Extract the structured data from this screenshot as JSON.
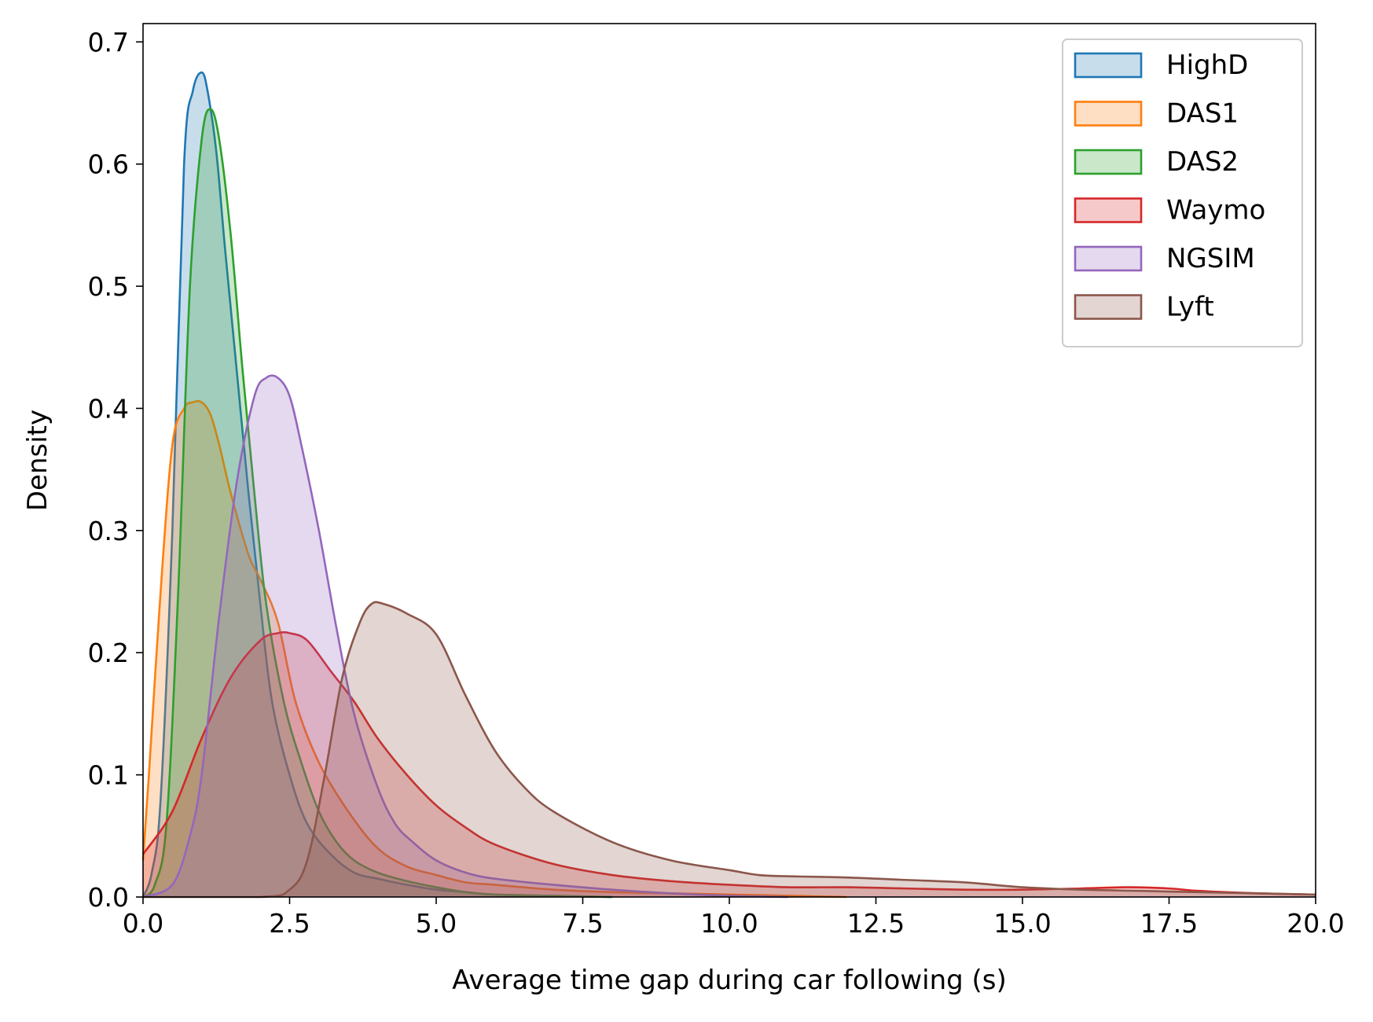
{
  "chart_data": {
    "type": "area",
    "subtype": "kde-density",
    "title": "",
    "xlabel": "Average time gap during car following (s)",
    "ylabel": "Density",
    "xlim": [
      0,
      20
    ],
    "ylim": [
      0,
      0.715
    ],
    "xticks": [
      0,
      2.5,
      5,
      7.5,
      10,
      12.5,
      15,
      17.5,
      20
    ],
    "xtick_labels": [
      "0.0",
      "2.5",
      "5.0",
      "7.5",
      "10.0",
      "12.5",
      "15.0",
      "17.5",
      "20.0"
    ],
    "yticks": [
      0,
      0.1,
      0.2,
      0.3,
      0.4,
      0.5,
      0.6,
      0.7
    ],
    "ytick_labels": [
      "0.0",
      "0.1",
      "0.2",
      "0.3",
      "0.4",
      "0.5",
      "0.6",
      "0.7"
    ],
    "legend_position": "top-right",
    "fill_opacity": 0.25,
    "series": [
      {
        "name": "HighD",
        "color": "#1f77b4",
        "x": [
          0,
          0.15,
          0.3,
          0.5,
          0.7,
          0.85,
          1.0,
          1.1,
          1.25,
          1.4,
          1.6,
          1.8,
          2.0,
          2.2,
          2.5,
          2.8,
          3.2,
          3.6,
          4.0,
          4.5,
          5.0,
          5.5,
          6.0,
          7.0,
          8.0
        ],
        "y": [
          0.0,
          0.02,
          0.08,
          0.3,
          0.6,
          0.66,
          0.675,
          0.66,
          0.61,
          0.53,
          0.43,
          0.33,
          0.24,
          0.16,
          0.1,
          0.06,
          0.035,
          0.02,
          0.015,
          0.01,
          0.006,
          0.004,
          0.002,
          0.001,
          0.0
        ]
      },
      {
        "name": "DAS1",
        "color": "#ff7f0e",
        "x": [
          0,
          0.1,
          0.3,
          0.5,
          0.7,
          0.85,
          1.0,
          1.15,
          1.3,
          1.5,
          1.8,
          2.0,
          2.3,
          2.6,
          3.0,
          3.5,
          4.0,
          4.5,
          5.0,
          5.5,
          6.0,
          7.0,
          8.0,
          9.0,
          10.0,
          12.0
        ],
        "y": [
          0.03,
          0.1,
          0.25,
          0.37,
          0.4,
          0.405,
          0.405,
          0.395,
          0.37,
          0.33,
          0.28,
          0.26,
          0.225,
          0.16,
          0.11,
          0.07,
          0.04,
          0.025,
          0.018,
          0.012,
          0.01,
          0.006,
          0.004,
          0.003,
          0.002,
          0.0
        ]
      },
      {
        "name": "DAS2",
        "color": "#2ca02c",
        "x": [
          0,
          0.2,
          0.4,
          0.6,
          0.8,
          1.0,
          1.15,
          1.3,
          1.5,
          1.7,
          1.9,
          2.1,
          2.4,
          2.7,
          3.0,
          3.3,
          3.6,
          4.0,
          4.5,
          5.0,
          5.5,
          6.0,
          7.0,
          8.0
        ],
        "y": [
          0.0,
          0.01,
          0.06,
          0.25,
          0.5,
          0.62,
          0.645,
          0.62,
          0.54,
          0.43,
          0.33,
          0.24,
          0.16,
          0.11,
          0.07,
          0.045,
          0.03,
          0.02,
          0.013,
          0.008,
          0.004,
          0.002,
          0.001,
          0.0
        ]
      },
      {
        "name": "Waymo",
        "color": "#d62728",
        "x": [
          0,
          0.5,
          1.0,
          1.5,
          2.0,
          2.3,
          2.5,
          2.8,
          3.2,
          3.6,
          4.0,
          4.5,
          5.0,
          5.5,
          6.0,
          7.0,
          8.0,
          9.0,
          10.0,
          11.0,
          12.0,
          13.0,
          14.0,
          15.0,
          16.0,
          16.8,
          17.5,
          18.0,
          19.0,
          20.0
        ],
        "y": [
          0.035,
          0.07,
          0.13,
          0.18,
          0.21,
          0.216,
          0.216,
          0.21,
          0.185,
          0.16,
          0.13,
          0.1,
          0.075,
          0.057,
          0.043,
          0.027,
          0.018,
          0.013,
          0.01,
          0.008,
          0.008,
          0.007,
          0.006,
          0.006,
          0.007,
          0.008,
          0.007,
          0.005,
          0.003,
          0.002
        ]
      },
      {
        "name": "NGSIM",
        "color": "#9467bd",
        "x": [
          0,
          0.5,
          0.8,
          1.0,
          1.3,
          1.6,
          1.9,
          2.1,
          2.3,
          2.5,
          2.7,
          3.0,
          3.3,
          3.6,
          4.0,
          4.3,
          4.6,
          5.0,
          5.5,
          6.0,
          7.0,
          8.0,
          9.0,
          10.0,
          11.0
        ],
        "y": [
          0.0,
          0.01,
          0.05,
          0.1,
          0.23,
          0.34,
          0.41,
          0.425,
          0.425,
          0.41,
          0.37,
          0.3,
          0.22,
          0.15,
          0.09,
          0.06,
          0.045,
          0.03,
          0.02,
          0.015,
          0.01,
          0.006,
          0.003,
          0.001,
          0.0
        ]
      },
      {
        "name": "Lyft",
        "color": "#8c564b",
        "x": [
          0,
          2.0,
          2.5,
          2.8,
          3.1,
          3.4,
          3.7,
          3.9,
          4.1,
          4.5,
          5.0,
          5.5,
          6.0,
          6.5,
          7.0,
          8.0,
          9.0,
          10.0,
          10.5,
          11.0,
          12.0,
          13.0,
          14.0,
          15.0,
          16.0,
          17.0,
          18.0,
          19.0,
          20.0
        ],
        "y": [
          0.0,
          0.0,
          0.006,
          0.03,
          0.1,
          0.18,
          0.225,
          0.24,
          0.24,
          0.232,
          0.215,
          0.165,
          0.12,
          0.09,
          0.07,
          0.045,
          0.03,
          0.022,
          0.018,
          0.017,
          0.016,
          0.014,
          0.012,
          0.008,
          0.006,
          0.005,
          0.004,
          0.003,
          0.002
        ]
      }
    ]
  }
}
